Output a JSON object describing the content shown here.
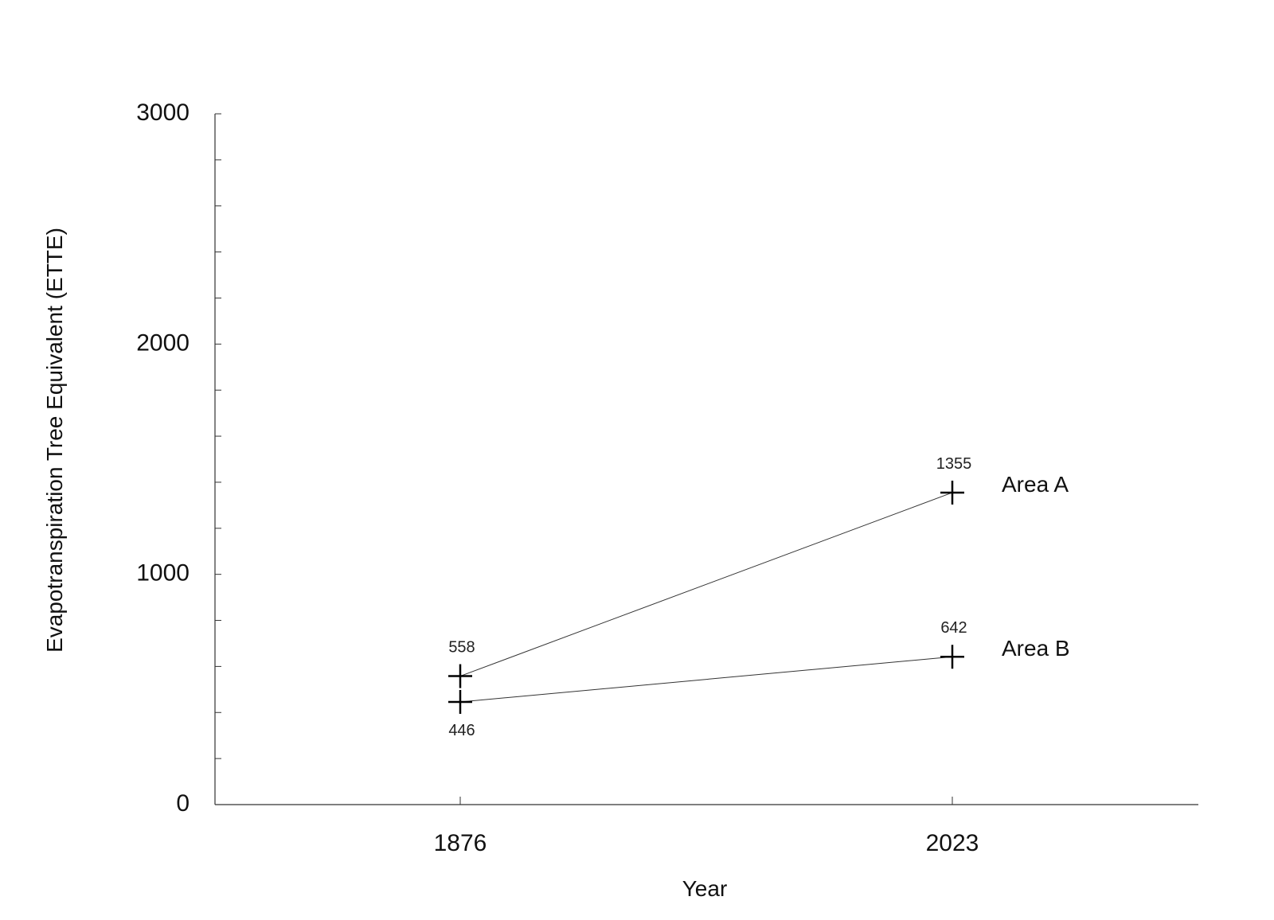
{
  "chart_data": {
    "type": "line",
    "xlabel": "Year",
    "ylabel": "Evapotranspiration Tree Equivalent (ETTE)",
    "categories": [
      "1876",
      "2023"
    ],
    "ylim": [
      0,
      3000
    ],
    "yticks": [
      0,
      1000,
      2000,
      3000
    ],
    "minor_tick_step": 200,
    "grid": false,
    "legend": "none",
    "series": [
      {
        "name": "Area A",
        "values": [
          558,
          1355
        ],
        "labels": [
          "558",
          "1355"
        ],
        "label_positions": [
          "above",
          "above"
        ]
      },
      {
        "name": "Area B",
        "values": [
          446,
          642
        ],
        "labels": [
          "446",
          "642"
        ],
        "label_positions": [
          "below",
          "above"
        ]
      }
    ],
    "colors": {
      "line": "#333333",
      "marker": "#000000",
      "text": "#111111"
    }
  }
}
